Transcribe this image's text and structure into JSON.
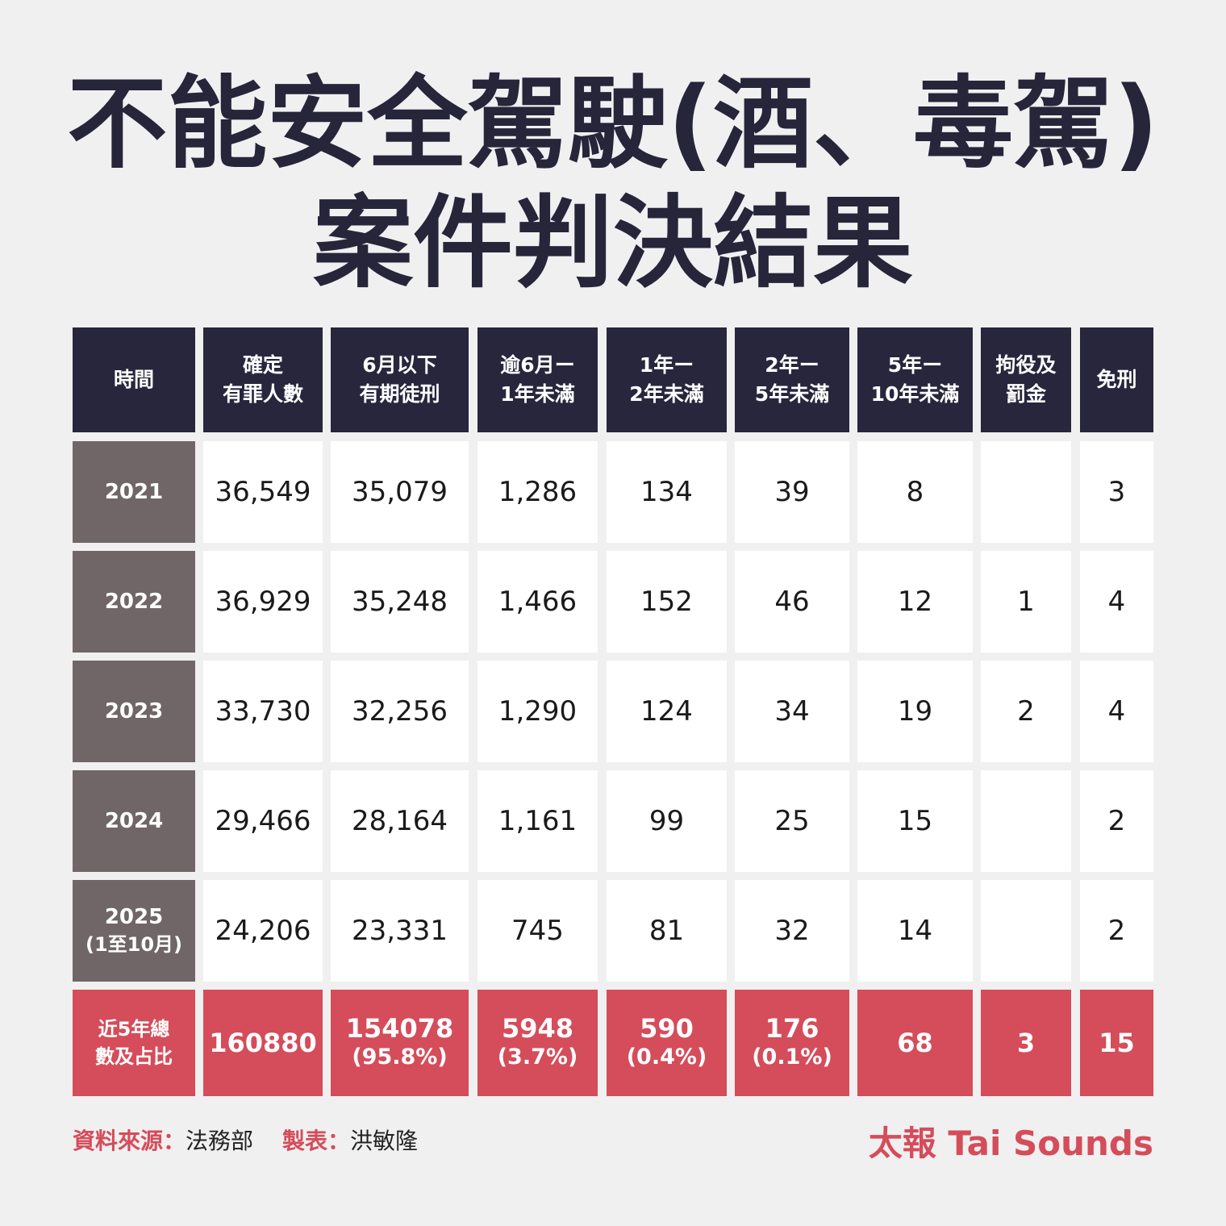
{
  "title": {
    "line1": "不能安全駕駛(酒、毒駕)",
    "line2": "案件判決結果"
  },
  "chart_data": {
    "type": "table",
    "columns": [
      [
        "時間"
      ],
      [
        "確定",
        "有罪人數"
      ],
      [
        "6月以下",
        "有期徒刑"
      ],
      [
        "逾6月ー",
        "1年未滿"
      ],
      [
        "1年ー",
        "2年未滿"
      ],
      [
        "2年ー",
        "5年未滿"
      ],
      [
        "5年ー",
        "10年未滿"
      ],
      [
        "拘役及",
        "罰金"
      ],
      [
        "免刑"
      ]
    ],
    "rows": [
      {
        "year": "2021",
        "year_note": "",
        "values": [
          "36,549",
          "35,079",
          "1,286",
          "134",
          "39",
          "8",
          "",
          "3"
        ]
      },
      {
        "year": "2022",
        "year_note": "",
        "values": [
          "36,929",
          "35,248",
          "1,466",
          "152",
          "46",
          "12",
          "1",
          "4"
        ]
      },
      {
        "year": "2023",
        "year_note": "",
        "values": [
          "33,730",
          "32,256",
          "1,290",
          "124",
          "34",
          "19",
          "2",
          "4"
        ]
      },
      {
        "year": "2024",
        "year_note": "",
        "values": [
          "29,466",
          "28,164",
          "1,161",
          "99",
          "25",
          "15",
          "",
          "2"
        ]
      },
      {
        "year": "2025",
        "year_note": "(1至10月)",
        "values": [
          "24,206",
          "23,331",
          "745",
          "81",
          "32",
          "14",
          "",
          "2"
        ]
      }
    ],
    "total": {
      "label": [
        "近5年總",
        "數及占比"
      ],
      "values": [
        {
          "value": "160880",
          "pct": ""
        },
        {
          "value": "154078",
          "pct": "(95.8%)"
        },
        {
          "value": "5948",
          "pct": "(3.7%)"
        },
        {
          "value": "590",
          "pct": "(0.4%)"
        },
        {
          "value": "176",
          "pct": "(0.1%)"
        },
        {
          "value": "68",
          "pct": ""
        },
        {
          "value": "3",
          "pct": ""
        },
        {
          "value": "15",
          "pct": ""
        }
      ]
    }
  },
  "footer": {
    "source_label": "資料來源：",
    "source_value": "法務部",
    "author_label": "製表：",
    "author_value": "洪敏隆",
    "brand": "太報 Tai Sounds"
  },
  "colors": {
    "header_bg": "#27263d",
    "year_bg": "#716667",
    "total_bg": "#d54c5a",
    "accent": "#d54c5a",
    "background": "#f0f0f0"
  }
}
